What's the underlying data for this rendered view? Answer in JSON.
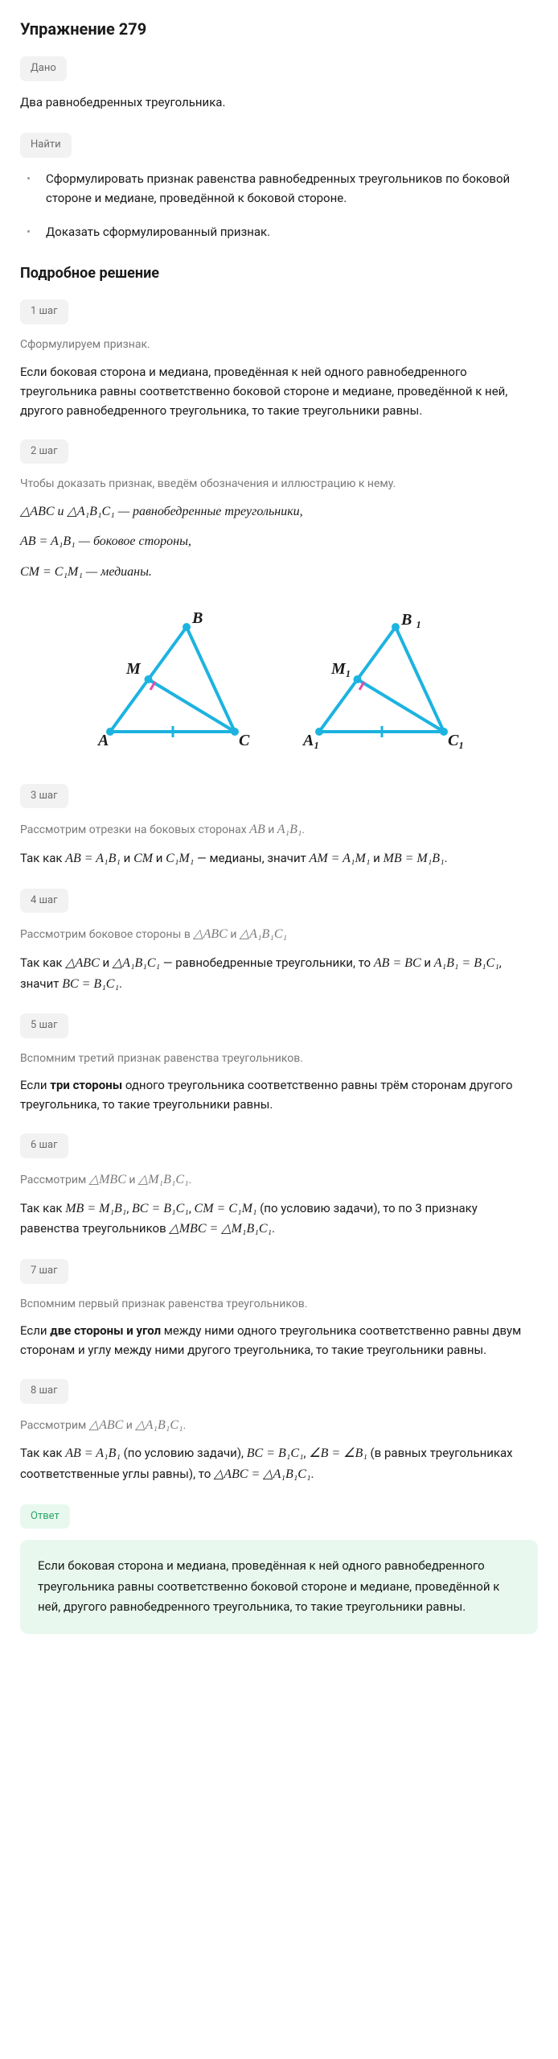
{
  "title": "Упражнение 279",
  "given_label": "Дано",
  "given_text": "Два равнобедренных треугольника.",
  "find_label": "Найти",
  "find_items": [
    "Сформулировать признак равенства равнобедренных треугольников по боковой стороне и медиане, проведённой к боковой стороне.",
    "Доказать сформулированный признак."
  ],
  "solution_title": "Подробное решение",
  "steps": [
    {
      "badge": "1 шаг",
      "intro": "Сформулируем признак.",
      "body": "Если боковая сторона и медиана, проведённая к ней одного равнобедренного треугольника равны соответственно боковой стороне и медиане, проведённой к ней, другого равнобедренного треугольника, то такие треугольники равны."
    },
    {
      "badge": "2 шаг",
      "intro": "Чтобы доказать признак, введём обозначения и иллюстрацию к нему.",
      "math_lines": [
        "△ABC и △A₁B₁C₁ — равнобедренные треугольники,",
        "AB = A₁B₁ — боковое стороны,",
        "CM = C₁M₁ — медианы."
      ]
    },
    {
      "badge": "3 шаг",
      "intro_html": "Рассмотрим отрезки на боковых сторонах <span class='math'>AB</span> и <span class='math'>A₁B₁</span>.",
      "body_html": "Так как <span class='math'>AB = A₁B₁</span> и <span class='math'>CM</span> и <span class='math'>C₁M₁</span> — медианы, значит <span class='math'>AM = A₁M₁</span> и <span class='math'>MB = M₁B₁</span>."
    },
    {
      "badge": "4 шаг",
      "intro_html": "Рассмотрим боковое стороны в <span class='math'>△ABC</span> и <span class='math'>△A₁B₁C₁</span>",
      "body_html": "Так как <span class='math'>△ABC</span> и <span class='math'>△A₁B₁C₁</span> — равнобедренные треугольники, то <span class='math'>AB = BC</span> и <span class='math'>A₁B₁ = B₁C₁</span>, значит <span class='math'>BC = B₁C₁</span>."
    },
    {
      "badge": "5 шаг",
      "intro": "Вспомним третий признак равенства треугольников.",
      "body_html": "Если <span class='bold'>три стороны</span> одного треугольника соответственно равны трём сторонам другого треугольника, то такие треугольники равны."
    },
    {
      "badge": "6 шаг",
      "intro_html": "Рассмотрим <span class='math'>△MBC</span> и <span class='math'>△M₁B₁C₁</span>.",
      "body_html": "Так как <span class='math'>MB = M₁B₁</span>, <span class='math'>BC = B₁C₁</span>, <span class='math'>CM = C₁M₁</span> (по условию задачи), то по 3 признаку равенства треугольников <span class='math'>△MBC = △M₁B₁C₁</span>."
    },
    {
      "badge": "7 шаг",
      "intro": "Вспомним первый признак равенства треугольников.",
      "body_html": "Если <span class='bold'>две стороны и угол</span> между ними одного треугольника соответственно равны двум сторонам и углу между ними другого треугольника, то такие треугольники равны."
    },
    {
      "badge": "8 шаг",
      "intro_html": "Рассмотрим <span class='math'>△ABC</span> и <span class='math'>△A₁B₁C₁</span>.",
      "body_html": "Так как <span class='math'>AB = A₁B₁</span> (по условию задачи), <span class='math'>BC = B₁C₁</span>, <span class='math'>∠B = ∠B₁</span> (в равных треугольниках соответственные углы равны), то <span class='math'>△ABC = △A₁B₁C₁</span>."
    }
  ],
  "answer_label": "Ответ",
  "answer_text": "Если боковая сторона и медиана, проведённая к ней одного равнобедренного треугольника равны соответственно боковой стороне и медиане, проведённой к ней, другого равнобедренного треугольника, то такие треугольники равны.",
  "diagram": {
    "stroke": "#1db3e0",
    "fill_dot": "#1db3e0",
    "tick_color": "#e84aa8",
    "label_color": "#1a1a1a",
    "label_font": "italic bold 18px serif",
    "tri1": {
      "A": "A",
      "B": "B",
      "C": "C",
      "M": "M"
    },
    "tri2": {
      "A": "A₁",
      "B": "B ₁",
      "C": "C₁",
      "M": "M₁"
    }
  }
}
